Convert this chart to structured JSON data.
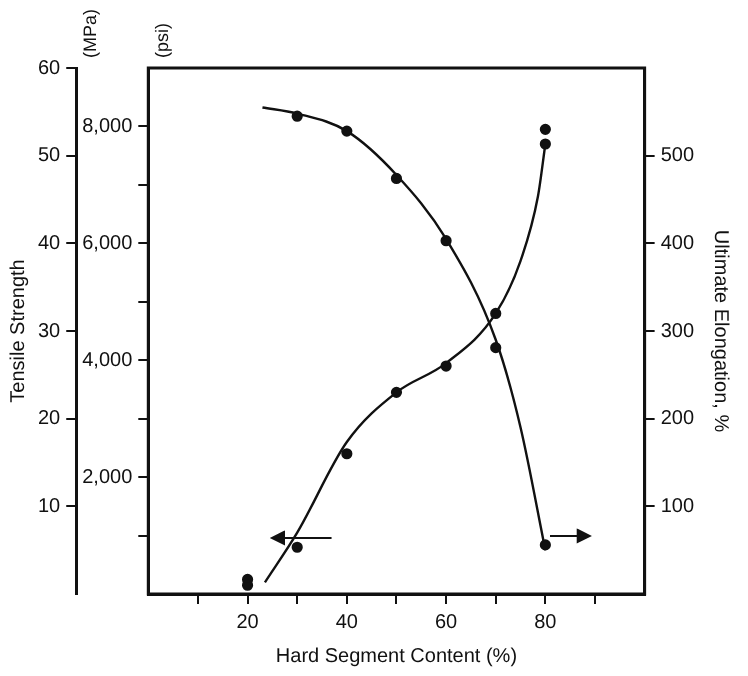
{
  "chart_data": {
    "type": "scatter",
    "xlabel": "Hard Segment Content (%)",
    "y2label": "Tensile Strength",
    "y3label": "Ultimate Elongation, %",
    "annotations": [
      "(MPa)",
      "(psi)"
    ],
    "xlim": [
      0,
      100
    ],
    "xticks": [
      {
        "value": 10,
        "label": null
      },
      20,
      {
        "value": 30,
        "label": null
      },
      40,
      {
        "value": 50,
        "label": null
      },
      60,
      {
        "value": 70,
        "label": null
      },
      80,
      {
        "value": 90,
        "label": null
      }
    ],
    "ylim": [
      0,
      9000
    ],
    "yticks": [
      {
        "value": 1000,
        "label": null
      },
      {
        "value": 2000,
        "label": "2,000"
      },
      {
        "value": 3000,
        "label": null
      },
      {
        "value": 4000,
        "label": "4,000"
      },
      {
        "value": 5000,
        "label": null
      },
      {
        "value": 6000,
        "label": "6,000"
      },
      {
        "value": 7000,
        "label": null
      },
      {
        "value": 8000,
        "label": "8,000"
      }
    ],
    "y2lim": [
      0,
      60
    ],
    "y2ticks": [
      10,
      20,
      30,
      40,
      50,
      60
    ],
    "y3lim": [
      0,
      600
    ],
    "y3ticks": [
      100,
      200,
      300,
      400,
      500
    ],
    "grid": false,
    "legend": false,
    "marker": "circle",
    "series": [
      {
        "type": "scatter",
        "color": "#111111",
        "x": [
          20,
          20,
          30,
          40,
          50,
          60,
          70,
          80,
          80
        ],
        "values": [
          250,
          150,
          800,
          2400,
          3450,
          3900,
          4800,
          7950,
          7700
        ]
      },
      {
        "type": "line",
        "color": "#111111",
        "marker": "none",
        "line_style": "solid",
        "x": [
          23.5,
          30,
          40,
          50,
          60,
          70,
          75,
          78.5,
          80
        ],
        "values": [
          200,
          1050,
          2600,
          3450,
          3950,
          4800,
          5700,
          6800,
          7700
        ]
      },
      {
        "type": "scatter",
        "axis": "y3",
        "color": "#111111",
        "x": [
          30,
          40,
          50,
          60,
          70,
          80
        ],
        "values": [
          545,
          528,
          474,
          403,
          281,
          56
        ]
      },
      {
        "type": "line",
        "axis": "y3",
        "color": "#111111",
        "marker": "none",
        "line_style": "solid",
        "x": [
          23,
          30,
          40,
          50,
          60,
          70,
          75,
          80
        ],
        "values": [
          555,
          548,
          528,
          478,
          405,
          290,
          190,
          50
        ]
      }
    ]
  }
}
